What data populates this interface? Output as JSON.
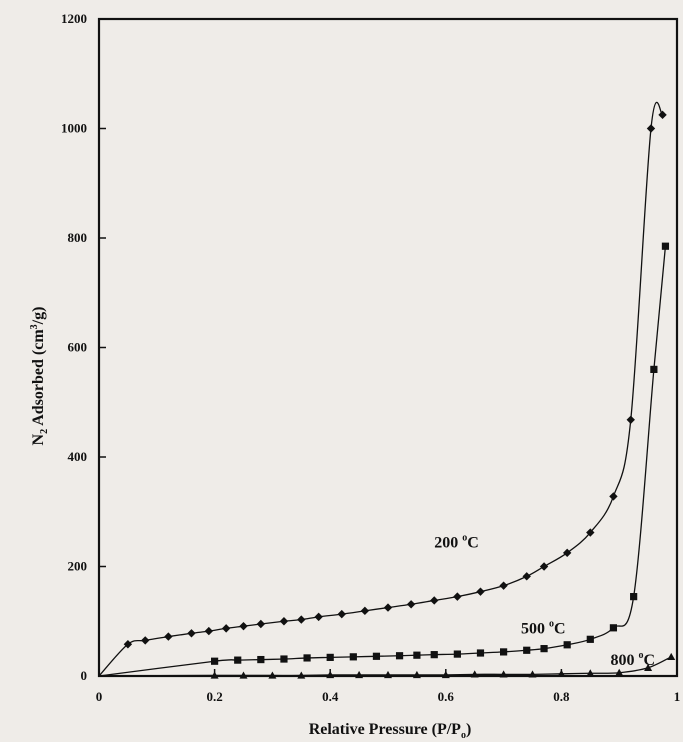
{
  "chart_data": {
    "type": "line",
    "title": "",
    "xlabel": "Relative  Pressure  (P/P",
    "xlabel_sub": "o",
    "xlabel_end": ")",
    "ylabel_prefix": "N",
    "ylabel_sub": "2",
    "ylabel_mid": " Adsorbed (cm",
    "ylabel_sup": "3",
    "ylabel_end": "/g)",
    "xlim": [
      0,
      1
    ],
    "ylim": [
      0,
      1200
    ],
    "x_ticks": [
      "0",
      "0.2",
      "0.4",
      "0.6",
      "0.8",
      "1"
    ],
    "y_ticks": [
      "0",
      "200",
      "400",
      "600",
      "800",
      "1000",
      "1200"
    ],
    "grid": false,
    "legend": "none",
    "series": [
      {
        "name": "200 °C",
        "label_main": "200 ",
        "label_sup": "o",
        "label_end": "C",
        "label_at": [
          0.58,
          235
        ],
        "marker": "diamond",
        "color": "#111111",
        "x": [
          0.05,
          0.08,
          0.12,
          0.16,
          0.19,
          0.22,
          0.25,
          0.28,
          0.32,
          0.35,
          0.38,
          0.42,
          0.46,
          0.5,
          0.54,
          0.58,
          0.62,
          0.66,
          0.7,
          0.74,
          0.77,
          0.81,
          0.85,
          0.89,
          0.92,
          0.955,
          0.975
        ],
        "y": [
          58,
          65,
          72,
          78,
          82,
          87,
          91,
          95,
          100,
          103,
          108,
          113,
          119,
          125,
          131,
          138,
          145,
          154,
          165,
          182,
          200,
          225,
          262,
          328,
          468,
          1000,
          1025
        ]
      },
      {
        "name": "500 °C",
        "label_main": "500 ",
        "label_sup": "o",
        "label_end": "C",
        "label_at": [
          0.73,
          78
        ],
        "marker": "square",
        "color": "#111111",
        "x": [
          0.2,
          0.24,
          0.28,
          0.32,
          0.36,
          0.4,
          0.44,
          0.48,
          0.52,
          0.55,
          0.58,
          0.62,
          0.66,
          0.7,
          0.74,
          0.77,
          0.81,
          0.85,
          0.89,
          0.925,
          0.96,
          0.98
        ],
        "y": [
          27,
          29,
          30,
          31,
          33,
          34,
          35,
          36,
          37,
          38,
          39,
          40,
          42,
          44,
          47,
          50,
          57,
          67,
          88,
          145,
          560,
          785
        ]
      },
      {
        "name": "800 °C",
        "label_main": "800 ",
        "label_sup": "o",
        "label_end": "C",
        "label_at": [
          0.885,
          20
        ],
        "marker": "triangle",
        "color": "#111111",
        "x": [
          0.2,
          0.25,
          0.3,
          0.35,
          0.4,
          0.45,
          0.5,
          0.55,
          0.6,
          0.65,
          0.7,
          0.75,
          0.8,
          0.85,
          0.9,
          0.95,
          0.99
        ],
        "y": [
          1,
          1,
          1,
          1,
          2,
          2,
          2,
          2,
          2,
          3,
          3,
          3,
          4,
          5,
          6,
          15,
          35
        ]
      }
    ]
  }
}
